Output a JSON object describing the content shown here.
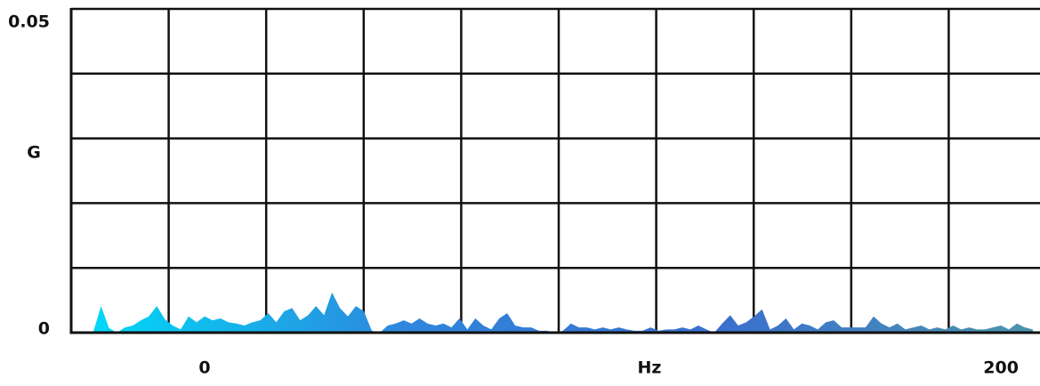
{
  "chart_data": {
    "type": "area",
    "y_label": "G",
    "x_label": "Hz",
    "ylim": [
      0,
      0.05
    ],
    "yticks": [
      0,
      0.05
    ],
    "xlim": [
      -33.5,
      209.8
    ],
    "xticks": [
      0,
      200
    ],
    "grid": true,
    "gradient": [
      "#00d8f7",
      "#2f86dc",
      "#3a6fcf",
      "#4b95ae"
    ],
    "x": [
      -28,
      -26,
      -24,
      -22,
      -20,
      -18,
      -16,
      -14,
      -12,
      -10,
      -8,
      -6,
      -4,
      -2,
      0,
      2,
      4,
      6,
      8,
      10,
      12,
      14,
      16,
      18,
      20,
      22,
      24,
      26,
      28,
      30,
      32,
      34,
      36,
      38,
      40,
      42,
      44,
      46,
      48,
      50,
      52,
      54,
      56,
      58,
      60,
      62,
      64,
      66,
      68,
      70,
      72,
      74,
      76,
      78,
      80,
      82,
      84,
      86,
      88,
      90,
      92,
      94,
      96,
      98,
      100,
      102,
      104,
      106,
      108,
      110,
      112,
      114,
      116,
      118,
      120,
      122,
      124,
      126,
      128,
      130,
      132,
      134,
      136,
      138,
      140,
      142,
      144,
      146,
      148,
      150,
      152,
      154,
      156,
      158,
      160,
      162,
      164,
      166,
      168,
      170,
      172,
      174,
      176,
      178,
      180,
      182,
      184,
      186,
      188,
      190,
      192,
      194,
      196,
      198,
      200,
      202,
      204,
      206,
      208
    ],
    "values": [
      0,
      0.0041,
      0.0007,
      0,
      0.0008,
      0.0011,
      0.0019,
      0.0025,
      0.0041,
      0.0021,
      0.0011,
      0.0005,
      0.0025,
      0.0016,
      0.0025,
      0.0019,
      0.0022,
      0.0016,
      0.0014,
      0.0011,
      0.0016,
      0.0019,
      0.003,
      0.0016,
      0.0033,
      0.0038,
      0.0019,
      0.0027,
      0.0041,
      0.0027,
      0.0062,
      0.0038,
      0.0025,
      0.0041,
      0.0033,
      0.0003,
      0,
      0.0011,
      0.0014,
      0.0019,
      0.0014,
      0.0022,
      0.0014,
      0.0011,
      0.0014,
      0.0008,
      0.0022,
      0.0005,
      0.0022,
      0.0011,
      0.0005,
      0.0022,
      0.003,
      0.0011,
      0.0008,
      0.0008,
      0.0003,
      0.0003,
      0,
      0.0003,
      0.0014,
      0.0008,
      0.0008,
      0.0005,
      0.0008,
      0.0005,
      0.0008,
      0.0005,
      0.0003,
      0.0003,
      0.0008,
      0.0003,
      0.0005,
      0.0005,
      0.0008,
      0.0005,
      0.0011,
      0.0005,
      0,
      0.0014,
      0.0027,
      0.0011,
      0.0016,
      0.0025,
      0.0036,
      0.0005,
      0.0011,
      0.0022,
      0.0005,
      0.0014,
      0.0011,
      0.0005,
      0.0016,
      0.0019,
      0.0008,
      0.0008,
      0.0008,
      0.0008,
      0.0025,
      0.0014,
      0.0008,
      0.0014,
      0.0005,
      0.0008,
      0.0011,
      0.0005,
      0.0008,
      0.0005,
      0.0011,
      0.0005,
      0.0008,
      0.0005,
      0.0005,
      0.0008,
      0.0011,
      0.0005,
      0.0014,
      0.0008,
      0.0005
    ]
  }
}
